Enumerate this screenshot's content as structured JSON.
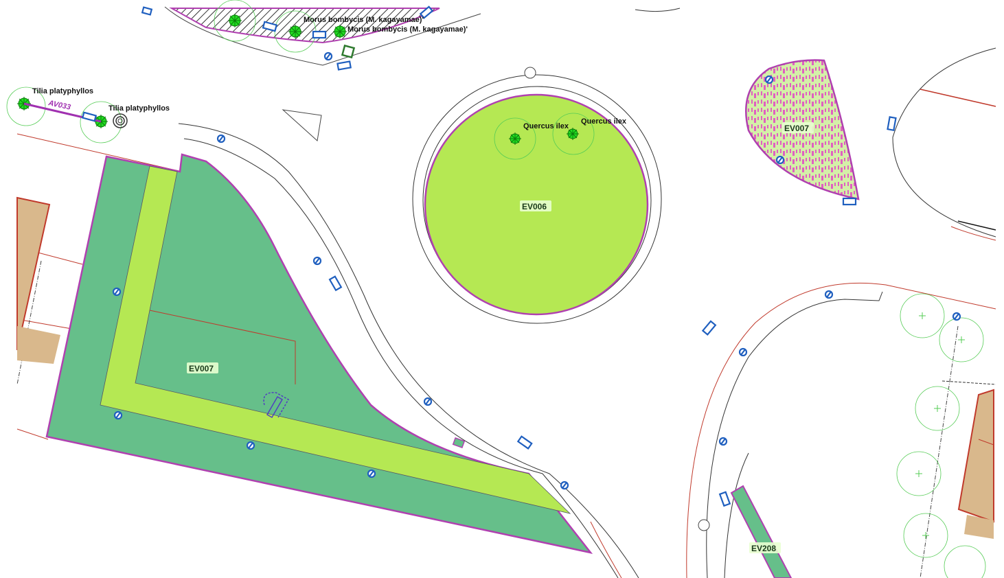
{
  "colors": {
    "lawn": "#b5e853",
    "shrub": "#66bf8a",
    "border": "#b040b0",
    "road": "#c0392b",
    "building": "#d9b88c",
    "furniture": "#1f5fbf",
    "tree": "#22dd22"
  },
  "zones": [
    {
      "code": "EV006"
    },
    {
      "code": "EV007"
    },
    {
      "code": "EV007"
    },
    {
      "code": "EV208"
    }
  ],
  "trees": [
    {
      "species": "Morus bombycis (M. kagayamae)'"
    },
    {
      "species": "Morus bombycis (M. kagayamae)'"
    },
    {
      "species": "Tilia platyphyllos"
    },
    {
      "species": "Tilia platyphyllos"
    },
    {
      "species": "Quercus ilex"
    },
    {
      "species": "Quercus ilex"
    }
  ],
  "alignments": [
    {
      "code": "AV033"
    }
  ],
  "icons": [
    "tree-symbol-icon",
    "bench-icon",
    "bin-icon",
    "well-icon"
  ]
}
